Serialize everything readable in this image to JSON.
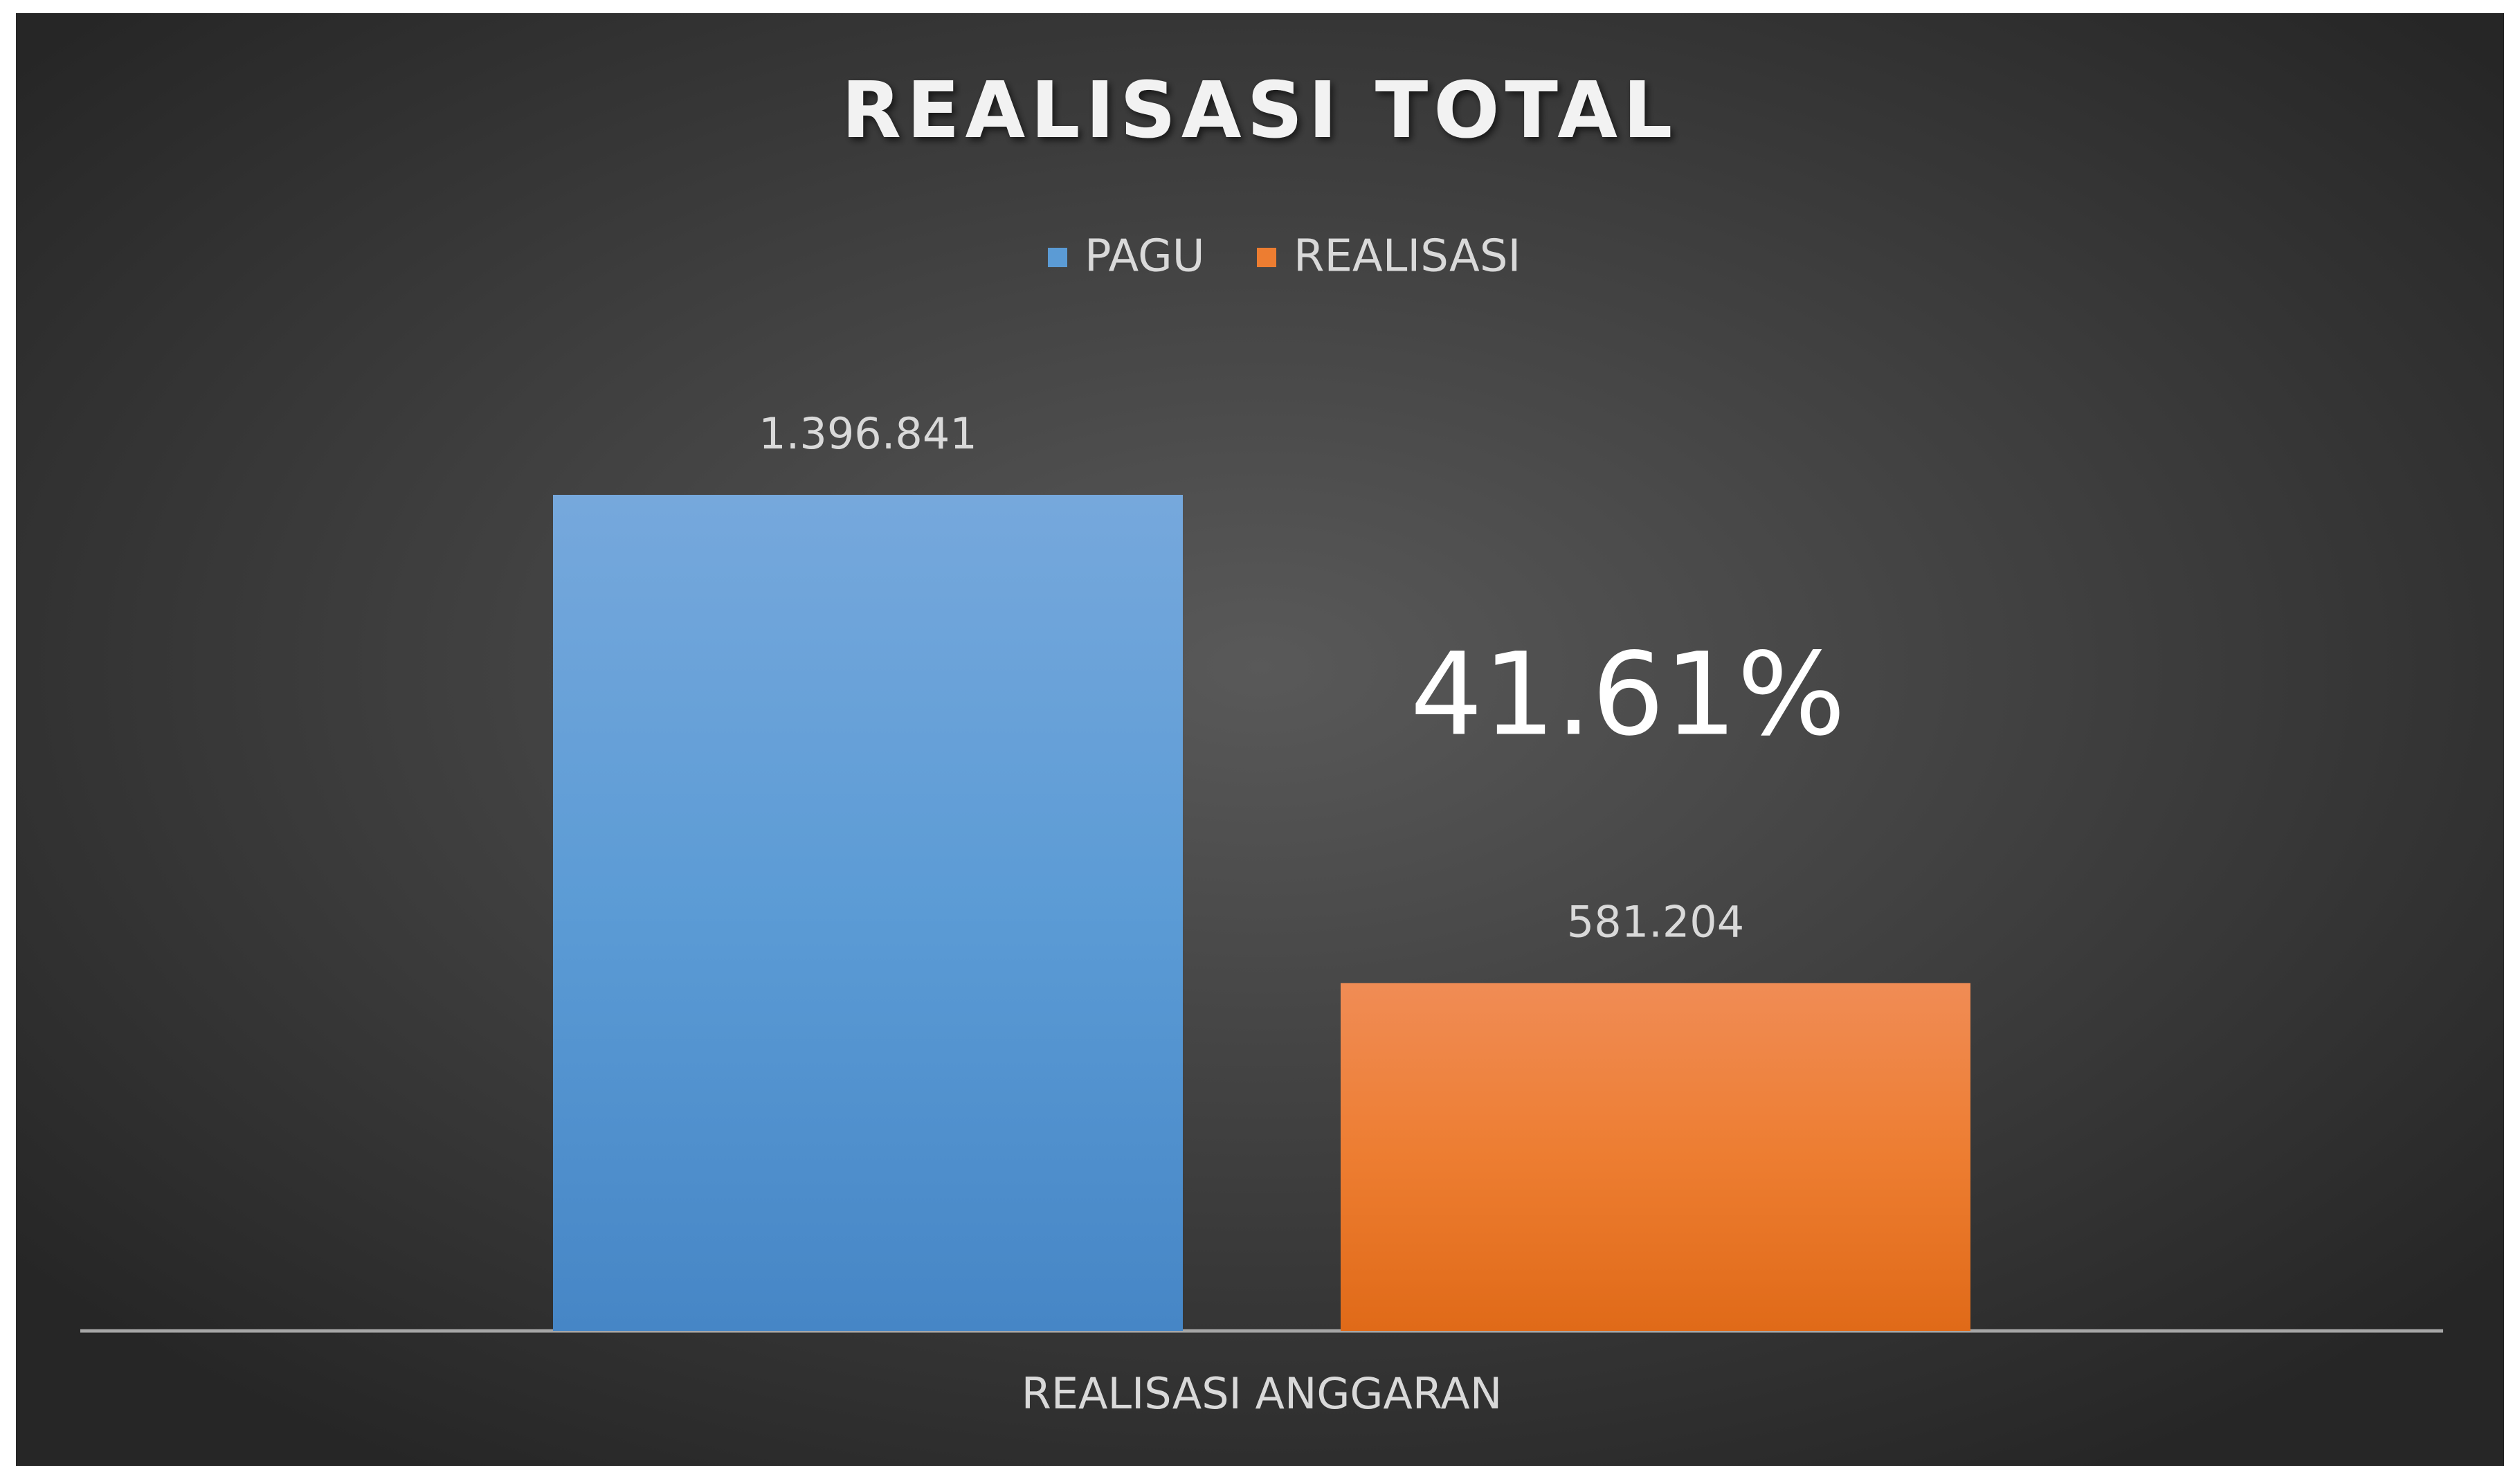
{
  "chart_data": {
    "type": "bar",
    "title": "REALISASI TOTAL",
    "categories": [
      "REALISASI ANGGARAN"
    ],
    "series": [
      {
        "name": "PAGU",
        "color": "#5b9bd5",
        "values": [
          1396841
        ],
        "value_labels": [
          "1.396.841"
        ]
      },
      {
        "name": "REALISASI",
        "color": "#ed7d31",
        "values": [
          581204
        ],
        "value_labels": [
          "581.204"
        ]
      }
    ],
    "annotation": "41.61%",
    "legend": "top"
  }
}
